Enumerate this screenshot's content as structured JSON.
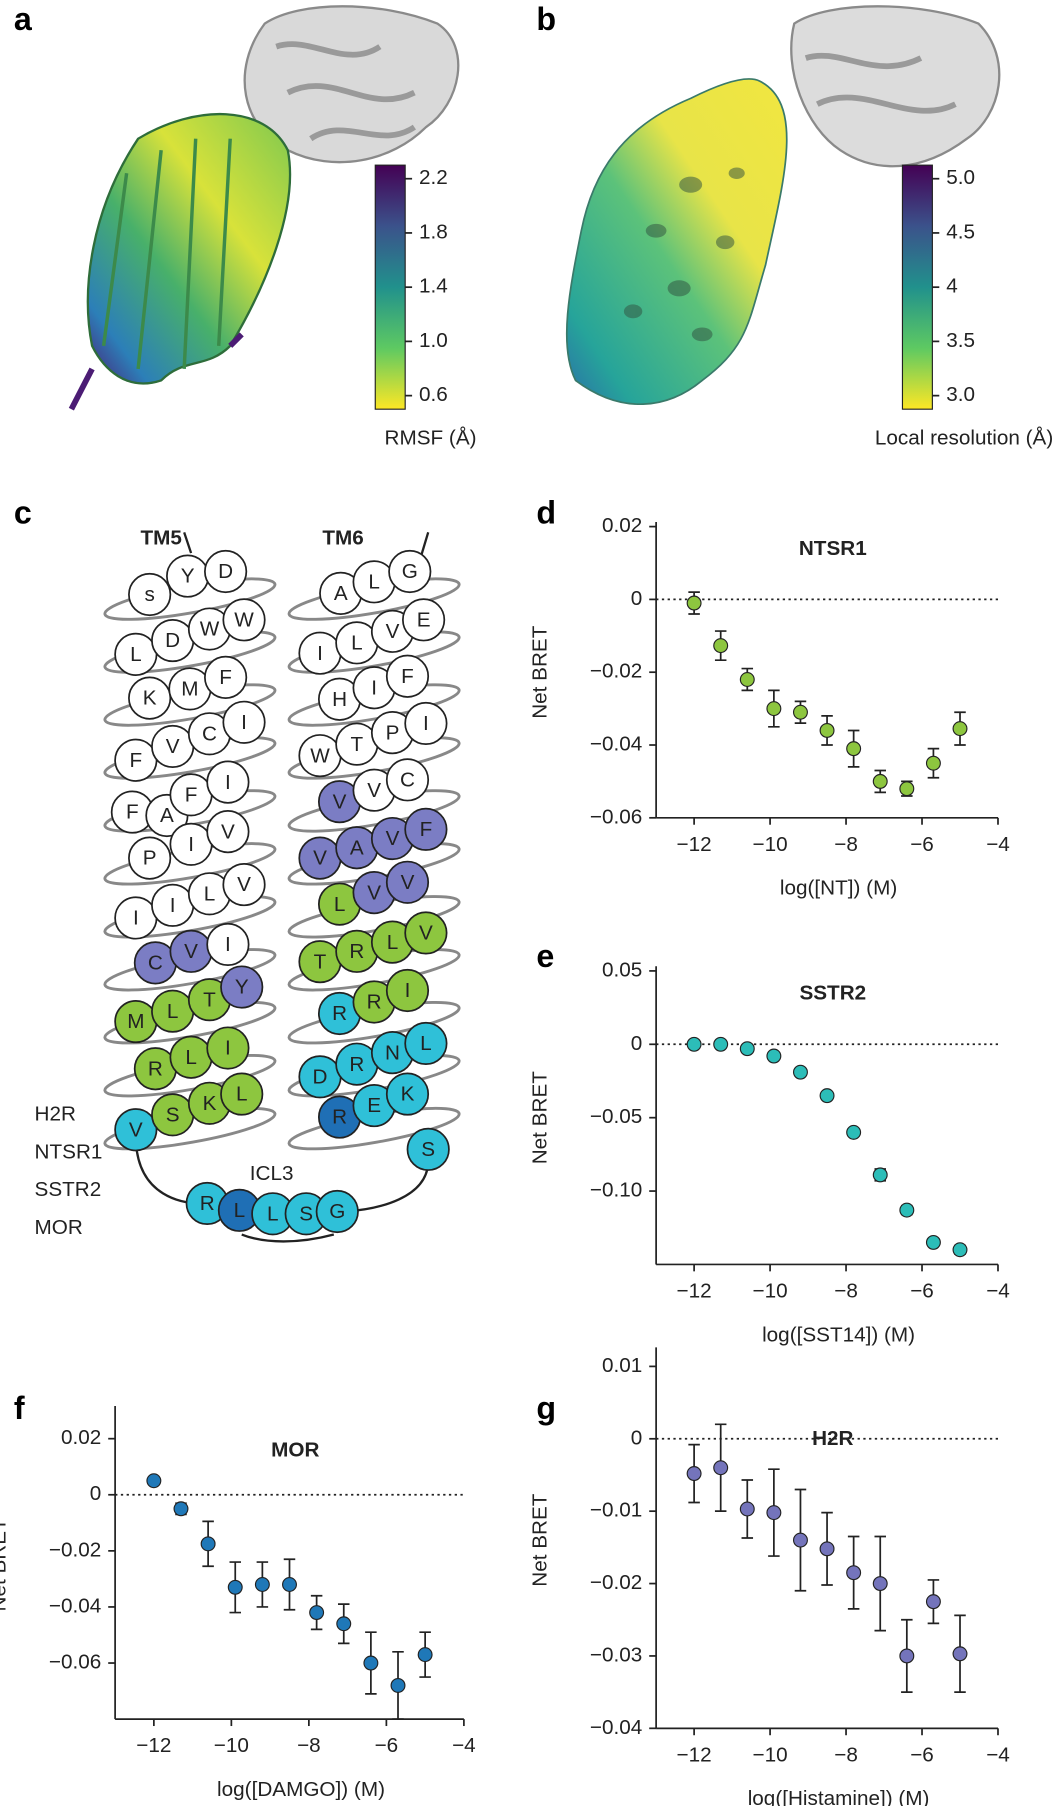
{
  "panels": [
    {
      "label": "a",
      "colorbar": {
        "label": "RMSF (Å)",
        "clim": [
          0.5,
          2.3
        ],
        "ticks": [
          2.2,
          1.8,
          1.4,
          {
            "value": 1,
            "label": "1.0"
          },
          0.6
        ]
      }
    },
    {
      "label": "b",
      "colorbar": {
        "label": "Local resolution (Å)",
        "clim": [
          2.875,
          5.125
        ],
        "ticks": [
          {
            "value": 5,
            "label": "5.0"
          },
          4.5,
          4,
          3.5,
          {
            "value": 3,
            "label": "3.0"
          }
        ]
      }
    }
  ],
  "helix_diagram": {
    "label": "c",
    "tm5_label": "TM5",
    "tm6_label": "TM6",
    "icl3_label": "ICL3",
    "legend": [
      {
        "name": "H2R",
        "color": "#7b7dc4"
      },
      {
        "name": "NTSR1",
        "color": "#8dc63f"
      },
      {
        "name": "SSTR2",
        "color": "#2fc0d8"
      },
      {
        "name": "MOR",
        "color": "#1f6fb5"
      }
    ],
    "residues": [
      {
        "letter": "s"
      },
      {
        "letter": "Y"
      },
      {
        "letter": "D"
      },
      {
        "letter": "L"
      },
      {
        "letter": "D"
      },
      {
        "letter": "W"
      },
      {
        "letter": "W"
      },
      {
        "letter": "K"
      },
      {
        "letter": "M"
      },
      {
        "letter": "F"
      },
      {
        "letter": "F"
      },
      {
        "letter": "V"
      },
      {
        "letter": "C"
      },
      {
        "letter": "I"
      },
      {
        "letter": "F"
      },
      {
        "letter": "A"
      },
      {
        "letter": "F"
      },
      {
        "letter": "I"
      },
      {
        "letter": "P"
      },
      {
        "letter": "I"
      },
      {
        "letter": "V"
      },
      {
        "letter": "I"
      },
      {
        "letter": "I"
      },
      {
        "letter": "L"
      },
      {
        "letter": "V"
      },
      {
        "letter": "C",
        "group": "H2R"
      },
      {
        "letter": "V",
        "group": "H2R"
      },
      {
        "letter": "I"
      },
      {
        "letter": "M",
        "group": "NTSR1"
      },
      {
        "letter": "L",
        "group": "NTSR1"
      },
      {
        "letter": "T",
        "group": "NTSR1"
      },
      {
        "letter": "Y",
        "group": "H2R"
      },
      {
        "letter": "R",
        "group": "NTSR1"
      },
      {
        "letter": "L",
        "group": "NTSR1"
      },
      {
        "letter": "I",
        "group": "NTSR1"
      },
      {
        "letter": "V",
        "group": "SSTR2"
      },
      {
        "letter": "S",
        "group": "NTSR1"
      },
      {
        "letter": "K",
        "group": "NTSR1"
      },
      {
        "letter": "L",
        "group": "NTSR1"
      },
      {
        "letter": "A"
      },
      {
        "letter": "L"
      },
      {
        "letter": "G"
      },
      {
        "letter": "I"
      },
      {
        "letter": "L"
      },
      {
        "letter": "V"
      },
      {
        "letter": "E"
      },
      {
        "letter": "H"
      },
      {
        "letter": "I"
      },
      {
        "letter": "F"
      },
      {
        "letter": "W"
      },
      {
        "letter": "T"
      },
      {
        "letter": "P"
      },
      {
        "letter": "I"
      },
      {
        "letter": "V",
        "group": "H2R"
      },
      {
        "letter": "V"
      },
      {
        "letter": "C"
      },
      {
        "letter": "V",
        "group": "H2R"
      },
      {
        "letter": "A",
        "group": "H2R"
      },
      {
        "letter": "V",
        "group": "H2R"
      },
      {
        "letter": "F",
        "group": "H2R"
      },
      {
        "letter": "L",
        "group": "NTSR1"
      },
      {
        "letter": "V",
        "group": "H2R"
      },
      {
        "letter": "V",
        "group": "H2R"
      },
      {
        "letter": "T",
        "group": "NTSR1"
      },
      {
        "letter": "R",
        "group": "NTSR1"
      },
      {
        "letter": "L",
        "group": "NTSR1"
      },
      {
        "letter": "V",
        "group": "NTSR1"
      },
      {
        "letter": "R",
        "group": "SSTR2"
      },
      {
        "letter": "R",
        "group": "NTSR1"
      },
      {
        "letter": "I",
        "group": "NTSR1"
      },
      {
        "letter": "D",
        "group": "SSTR2"
      },
      {
        "letter": "R",
        "group": "SSTR2"
      },
      {
        "letter": "N",
        "group": "SSTR2"
      },
      {
        "letter": "L",
        "group": "SSTR2"
      },
      {
        "letter": "R",
        "group": "MOR"
      },
      {
        "letter": "E",
        "group": "SSTR2"
      },
      {
        "letter": "K",
        "group": "SSTR2"
      },
      {
        "letter": "S",
        "group": "SSTR2"
      },
      {
        "letter": "R",
        "group": "SSTR2"
      },
      {
        "letter": "L",
        "group": "MOR"
      },
      {
        "letter": "L",
        "group": "SSTR2"
      },
      {
        "letter": "S",
        "group": "SSTR2"
      },
      {
        "letter": "G",
        "group": "SSTR2"
      }
    ]
  },
  "chart_data": [
    {
      "panel": "d",
      "type": "scatter",
      "title": "NTSR1",
      "color": "#8dc63f",
      "xlabel": "log([NT]) (M)",
      "ylabel": "Net BRET",
      "x": [
        -12,
        -11.3,
        -10.6,
        -9.9,
        -9.2,
        -8.5,
        -7.8,
        -7.1,
        -6.4,
        -5.7,
        -5
      ],
      "values": [
        -0.001,
        -0.0127,
        -0.022,
        -0.03,
        -0.031,
        -0.036,
        -0.041,
        -0.05,
        -0.052,
        -0.045,
        -0.0355
      ],
      "errors": [
        0.003,
        0.004,
        0.003,
        0.005,
        0.003,
        0.004,
        0.005,
        0.003,
        0.002,
        0.004,
        0.0045
      ],
      "xlim": [
        -13,
        -4
      ],
      "ylim": [
        -0.06,
        0.02
      ],
      "xticks": [
        {
          "value": -12,
          "label": "−12"
        },
        {
          "value": -10,
          "label": "−10"
        },
        {
          "value": -8,
          "label": "−8"
        },
        {
          "value": -6,
          "label": "−6"
        },
        {
          "value": -4,
          "label": "−4"
        }
      ],
      "yticks": [
        0.02,
        0,
        {
          "value": -0.02,
          "label": "−0.02"
        },
        {
          "value": -0.04,
          "label": "−0.04"
        },
        {
          "value": -0.06,
          "label": "−0.06"
        }
      ],
      "zero_line": true
    },
    {
      "panel": "e",
      "type": "scatter",
      "title": "SSTR2",
      "color": "#2cbdb8",
      "xlabel": "log([SST14]) (M)",
      "ylabel": "Net BRET",
      "x": [
        -12,
        -11.3,
        -10.6,
        -9.9,
        -9.2,
        -8.5,
        -7.8,
        -7.1,
        -6.4,
        -5.7,
        -5
      ],
      "values": [
        0,
        0,
        -0.003,
        -0.008,
        -0.019,
        -0.035,
        -0.06,
        -0.089,
        -0.113,
        -0.135,
        -0.14
      ],
      "errors": [
        0,
        0,
        0,
        0,
        0,
        0,
        0.002,
        0.004,
        0.003,
        0.002,
        0.003
      ],
      "xlim": [
        -13,
        -4
      ],
      "ylim": [
        -0.15,
        0.05
      ],
      "xticks": [
        {
          "value": -12,
          "label": "−12"
        },
        {
          "value": -10,
          "label": "−10"
        },
        {
          "value": -8,
          "label": "−8"
        },
        {
          "value": -6,
          "label": "−6"
        },
        {
          "value": -4,
          "label": "−4"
        }
      ],
      "yticks": [
        0.05,
        0,
        {
          "value": -0.05,
          "label": "−0.05"
        },
        {
          "value": -0.1,
          "label": "−0.10"
        }
      ],
      "zero_line": true
    },
    {
      "panel": "f",
      "type": "scatter",
      "title": "MOR",
      "color": "#1f78b8",
      "xlabel": "log([DAMGO]) (M)",
      "ylabel": "Net BRET",
      "x": [
        -12,
        -11.3,
        -10.6,
        -9.9,
        -9.2,
        -8.5,
        -7.8,
        -7.1,
        -6.4,
        -5.7,
        -5
      ],
      "values": [
        0.005,
        -0.005,
        -0.0175,
        -0.033,
        -0.032,
        -0.032,
        -0.042,
        -0.046,
        -0.06,
        -0.068,
        -0.057
      ],
      "errors": [
        0,
        0.002,
        0.008,
        0.009,
        0.008,
        0.009,
        0.006,
        0.007,
        0.011,
        0.012,
        0.008
      ],
      "xlim": [
        -13,
        -4
      ],
      "ylim": [
        -0.08,
        0.03
      ],
      "xticks": [
        {
          "value": -12,
          "label": "−12"
        },
        {
          "value": -10,
          "label": "−10"
        },
        {
          "value": -8,
          "label": "−8"
        },
        {
          "value": -6,
          "label": "−6"
        },
        {
          "value": -4,
          "label": "−4"
        }
      ],
      "yticks": [
        0.02,
        0,
        {
          "value": -0.02,
          "label": "−0.02"
        },
        {
          "value": -0.04,
          "label": "−0.04"
        },
        {
          "value": -0.06,
          "label": "−0.06"
        }
      ],
      "zero_line": true
    },
    {
      "panel": "g",
      "type": "scatter",
      "title": "H2R",
      "color": "#7474bb",
      "xlabel": "log([Histamine]) (M)",
      "ylabel": "Net BRET",
      "x": [
        -12,
        -11.3,
        -10.6,
        -9.9,
        -9.2,
        -8.5,
        -7.8,
        -7.1,
        -6.4,
        -5.7,
        -5
      ],
      "values": [
        -0.0048,
        -0.004,
        -0.0097,
        -0.0102,
        -0.014,
        -0.0152,
        -0.0185,
        -0.02,
        -0.03,
        -0.0225,
        -0.0297
      ],
      "errors": [
        0.004,
        0.006,
        0.004,
        0.006,
        0.007,
        0.005,
        0.005,
        0.0065,
        0.005,
        0.003,
        0.0053
      ],
      "xlim": [
        -13,
        -4
      ],
      "ylim": [
        -0.04,
        0.012
      ],
      "xticks": [
        {
          "value": -12,
          "label": "−12"
        },
        {
          "value": -10,
          "label": "−10"
        },
        {
          "value": -8,
          "label": "−8"
        },
        {
          "value": -6,
          "label": "−6"
        },
        {
          "value": -4,
          "label": "−4"
        }
      ],
      "yticks": [
        0.01,
        0,
        {
          "value": -0.01,
          "label": "−0.01"
        },
        {
          "value": -0.02,
          "label": "−0.02"
        },
        {
          "value": -0.03,
          "label": "−0.03"
        },
        {
          "value": -0.04,
          "label": "−0.04"
        }
      ],
      "zero_line": true
    }
  ]
}
